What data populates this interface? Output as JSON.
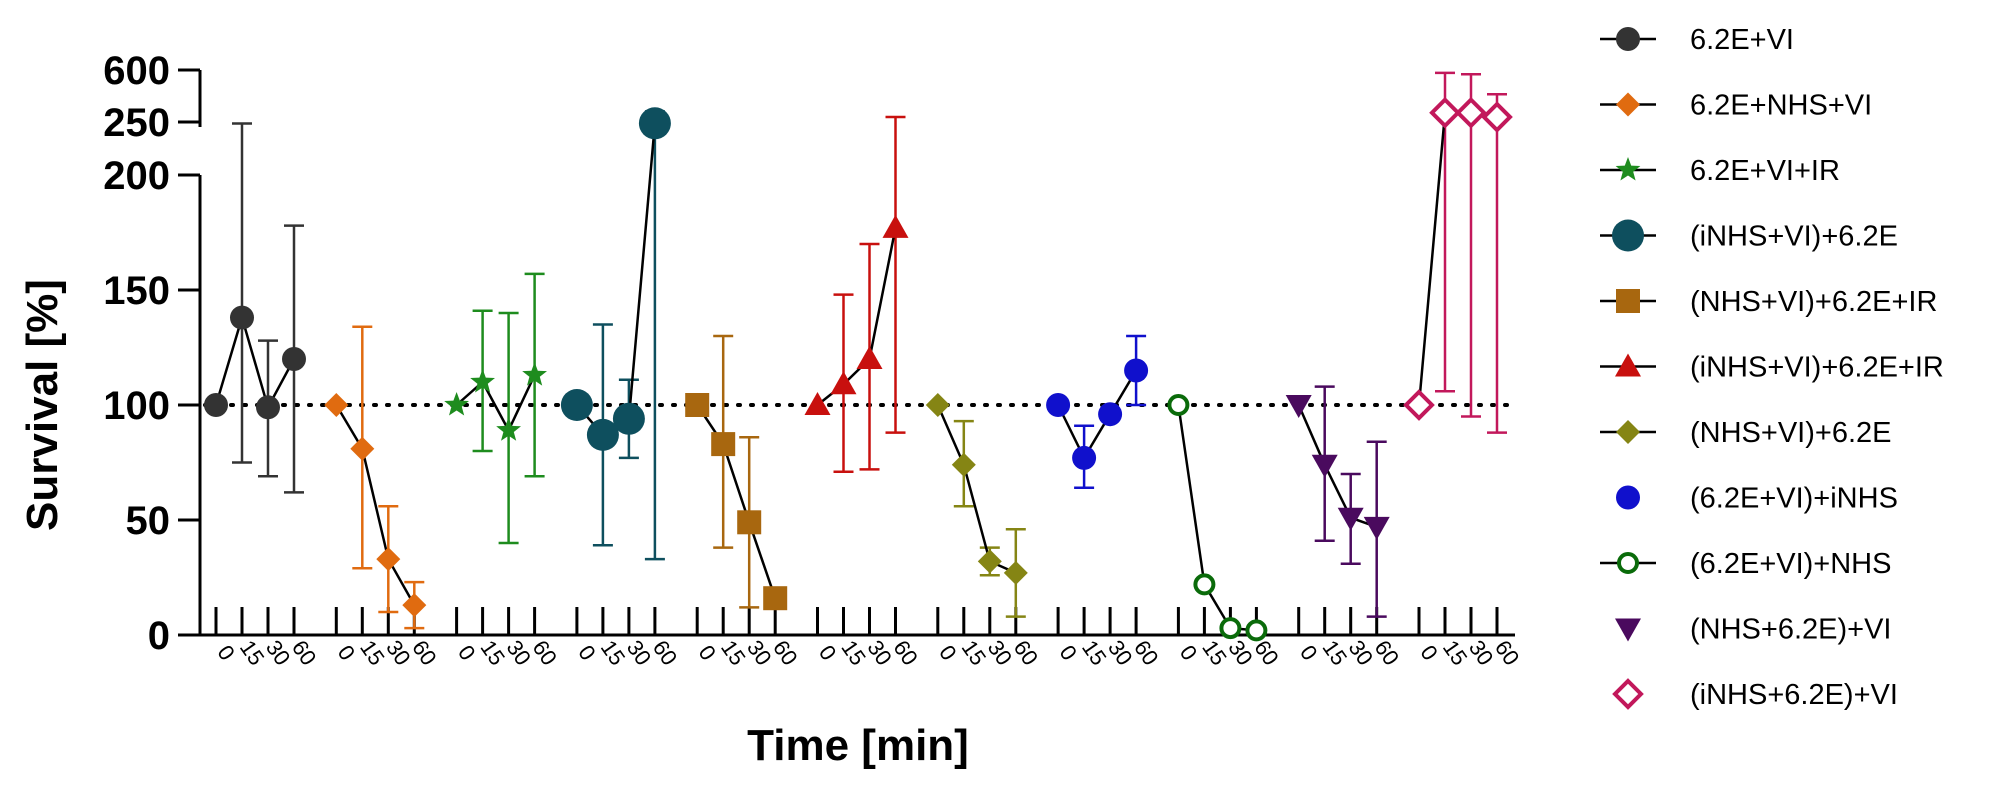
{
  "chart_data": {
    "type": "scatter",
    "title": "",
    "xlabel": "Time [min]",
    "ylabel": "Survival [%]",
    "ylim": [
      0,
      600
    ],
    "y_break": {
      "lower_range": [
        0,
        200
      ],
      "upper_range": [
        200,
        600
      ]
    },
    "yticks_lower": [
      0,
      50,
      100,
      150,
      200
    ],
    "yticks_upper": [
      250,
      600
    ],
    "time_points": [
      "0",
      "15",
      "30",
      "60"
    ],
    "reference_line": 100,
    "grid": false,
    "legend_position": "right",
    "series": [
      {
        "name": "6.2E+VI",
        "color": "#333333",
        "marker": "circle",
        "values": [
          100,
          138,
          99,
          120
        ],
        "err_low": [
          100,
          75,
          69,
          62
        ],
        "err_high": [
          100,
          225,
          128,
          178
        ]
      },
      {
        "name": "6.2E+NHS+VI",
        "color": "#E06B10",
        "marker": "diamond",
        "values": [
          100,
          81,
          33,
          13
        ],
        "err_low": [
          100,
          29,
          10,
          3
        ],
        "err_high": [
          100,
          134,
          56,
          23
        ]
      },
      {
        "name": "6.2E+VI+IR",
        "color": "#1E8C1E",
        "marker": "star",
        "values": [
          100,
          110,
          89,
          113
        ],
        "err_low": [
          100,
          80,
          40,
          69
        ],
        "err_high": [
          100,
          141,
          140,
          157
        ]
      },
      {
        "name": "(iNHS+VI)+6.2E",
        "color": "#0E4F5E",
        "marker": "circle-large",
        "values": [
          100,
          87,
          94,
          226
        ],
        "err_low": [
          100,
          39,
          77,
          33
        ],
        "err_high": [
          100,
          135,
          111,
          310
        ]
      },
      {
        "name": "(NHS+VI)+6.2E+IR",
        "color": "#A8670F",
        "marker": "square",
        "values": [
          100,
          83,
          49,
          16
        ],
        "err_low": [
          100,
          38,
          12,
          16
        ],
        "err_high": [
          100,
          130,
          86,
          16
        ]
      },
      {
        "name": "(iNHS+VI)+6.2E+IR",
        "color": "#C8100E",
        "marker": "triangle-up",
        "values": [
          100,
          109,
          120,
          177
        ],
        "err_low": [
          100,
          71,
          72,
          88
        ],
        "err_high": [
          100,
          148,
          170,
          270
        ]
      },
      {
        "name": "(NHS+VI)+6.2E",
        "color": "#858514",
        "marker": "diamond",
        "values": [
          100,
          74,
          32,
          27
        ],
        "err_low": [
          100,
          56,
          26,
          8
        ],
        "err_high": [
          100,
          93,
          38,
          46
        ]
      },
      {
        "name": "(6.2E+VI)+iNHS",
        "color": "#1010CC",
        "marker": "circle",
        "values": [
          100,
          77,
          96,
          115
        ],
        "err_low": [
          100,
          64,
          96,
          100
        ],
        "err_high": [
          100,
          91,
          96,
          130
        ]
      },
      {
        "name": "(6.2E+VI)+NHS",
        "color": "#0A6B0A",
        "marker": "circle-open",
        "values": [
          100,
          22,
          3,
          2
        ],
        "err_low": [
          100,
          22,
          3,
          2
        ],
        "err_high": [
          100,
          22,
          3,
          2
        ]
      },
      {
        "name": "(NHS+6.2E)+VI",
        "color": "#4A0A5E",
        "marker": "triangle-down",
        "values": [
          100,
          74,
          51,
          47
        ],
        "err_low": [
          100,
          41,
          31,
          8
        ],
        "err_high": [
          100,
          108,
          70,
          84
        ]
      },
      {
        "name": "(iNHS+6.2E)+VI",
        "color": "#C2185B",
        "marker": "diamond-open",
        "values": [
          100,
          300,
          300,
          270
        ],
        "err_low": [
          100,
          106,
          95,
          88
        ],
        "err_high": [
          100,
          580,
          570,
          430
        ]
      }
    ]
  }
}
